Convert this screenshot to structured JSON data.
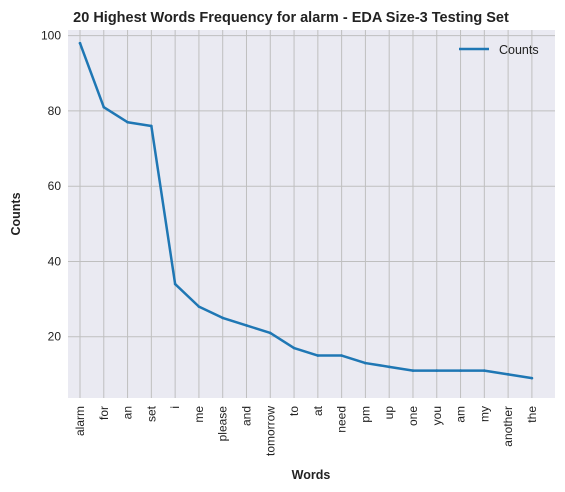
{
  "chart_data": {
    "type": "line",
    "title": "20 Highest Words Frequency for alarm - EDA Size-3 Testing Set",
    "xlabel": "Words",
    "ylabel": "Counts",
    "categories": [
      "alarm",
      "for",
      "an",
      "set",
      "i",
      "me",
      "please",
      "and",
      "tomorrow",
      "to",
      "at",
      "need",
      "pm",
      "up",
      "one",
      "you",
      "am",
      "my",
      "another",
      "the"
    ],
    "series": [
      {
        "name": "Counts",
        "values": [
          98,
          81,
          77,
          76,
          34,
          28,
          25,
          23,
          21,
          17,
          15,
          15,
          13,
          12,
          11,
          11,
          11,
          11,
          10,
          9
        ]
      }
    ],
    "ylim": [
      4.5,
      102.5
    ],
    "yticks": [
      20,
      40,
      60,
      80,
      100
    ],
    "grid": true,
    "legend_position": "top-right",
    "colors": {
      "line": "#1f77b4",
      "plot_background": "#eaeaf2",
      "grid": "#bfbfbf"
    }
  }
}
